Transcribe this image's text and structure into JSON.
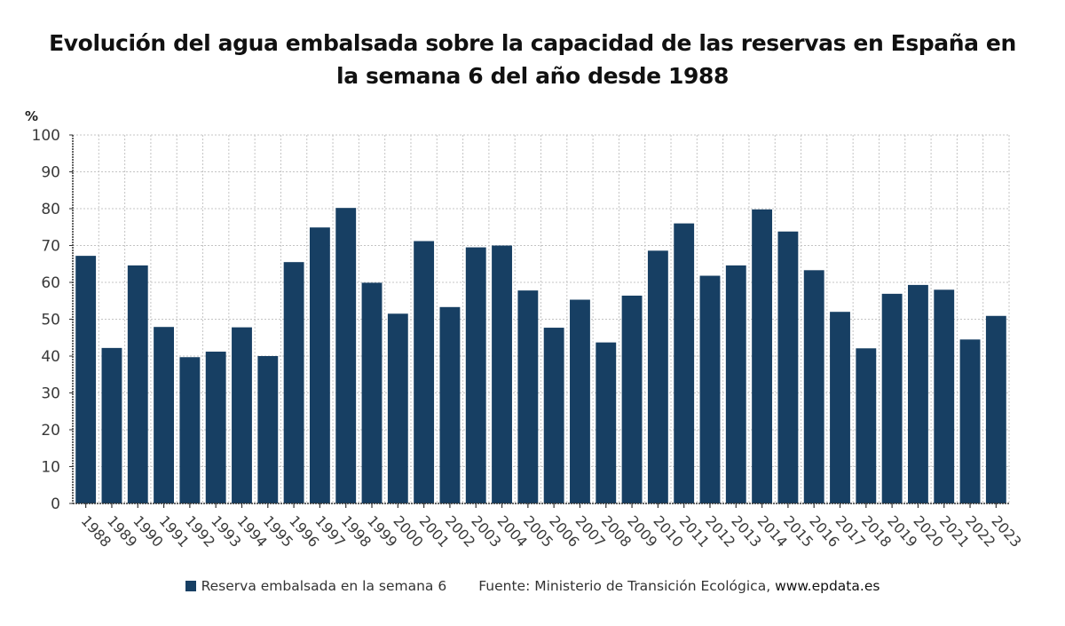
{
  "chart_data": {
    "type": "bar",
    "title": "Evolución del agua embalsada sobre la capacidad de las reservas en España en la semana 6 del año desde 1988",
    "ylabel": "%",
    "xlabel": "",
    "ylim": [
      0,
      100
    ],
    "yticks": [
      0,
      10,
      20,
      30,
      40,
      50,
      60,
      70,
      80,
      90,
      100
    ],
    "grid": true,
    "legend_position": "bottom",
    "categories": [
      "1988",
      "1989",
      "1990",
      "1991",
      "1992",
      "1993",
      "1994",
      "1995",
      "1996",
      "1997",
      "1998",
      "1999",
      "2000",
      "2001",
      "2002",
      "2003",
      "2004",
      "2005",
      "2006",
      "2007",
      "2008",
      "2009",
      "2010",
      "2011",
      "2012",
      "2013",
      "2014",
      "2015",
      "2016",
      "2017",
      "2018",
      "2019",
      "2020",
      "2021",
      "2022",
      "2023"
    ],
    "series": [
      {
        "name": "Reserva embalsada en la semana 6",
        "color": "#173f63",
        "values": [
          67.2,
          42.2,
          64.6,
          47.9,
          39.7,
          41.2,
          47.8,
          40.0,
          65.5,
          74.9,
          80.2,
          59.9,
          51.5,
          71.2,
          53.3,
          69.5,
          70.0,
          57.8,
          47.7,
          55.3,
          43.7,
          56.4,
          68.6,
          76.0,
          61.8,
          64.6,
          79.8,
          73.8,
          63.3,
          52.0,
          42.1,
          56.9,
          59.3,
          58.0,
          44.5,
          50.9
        ]
      }
    ]
  },
  "legend": {
    "series_label": "Reserva embalsada en la semana 6",
    "source_prefix": "Fuente: Ministerio de Transición Ecológica, ",
    "source_site": "www.epdata.es"
  }
}
